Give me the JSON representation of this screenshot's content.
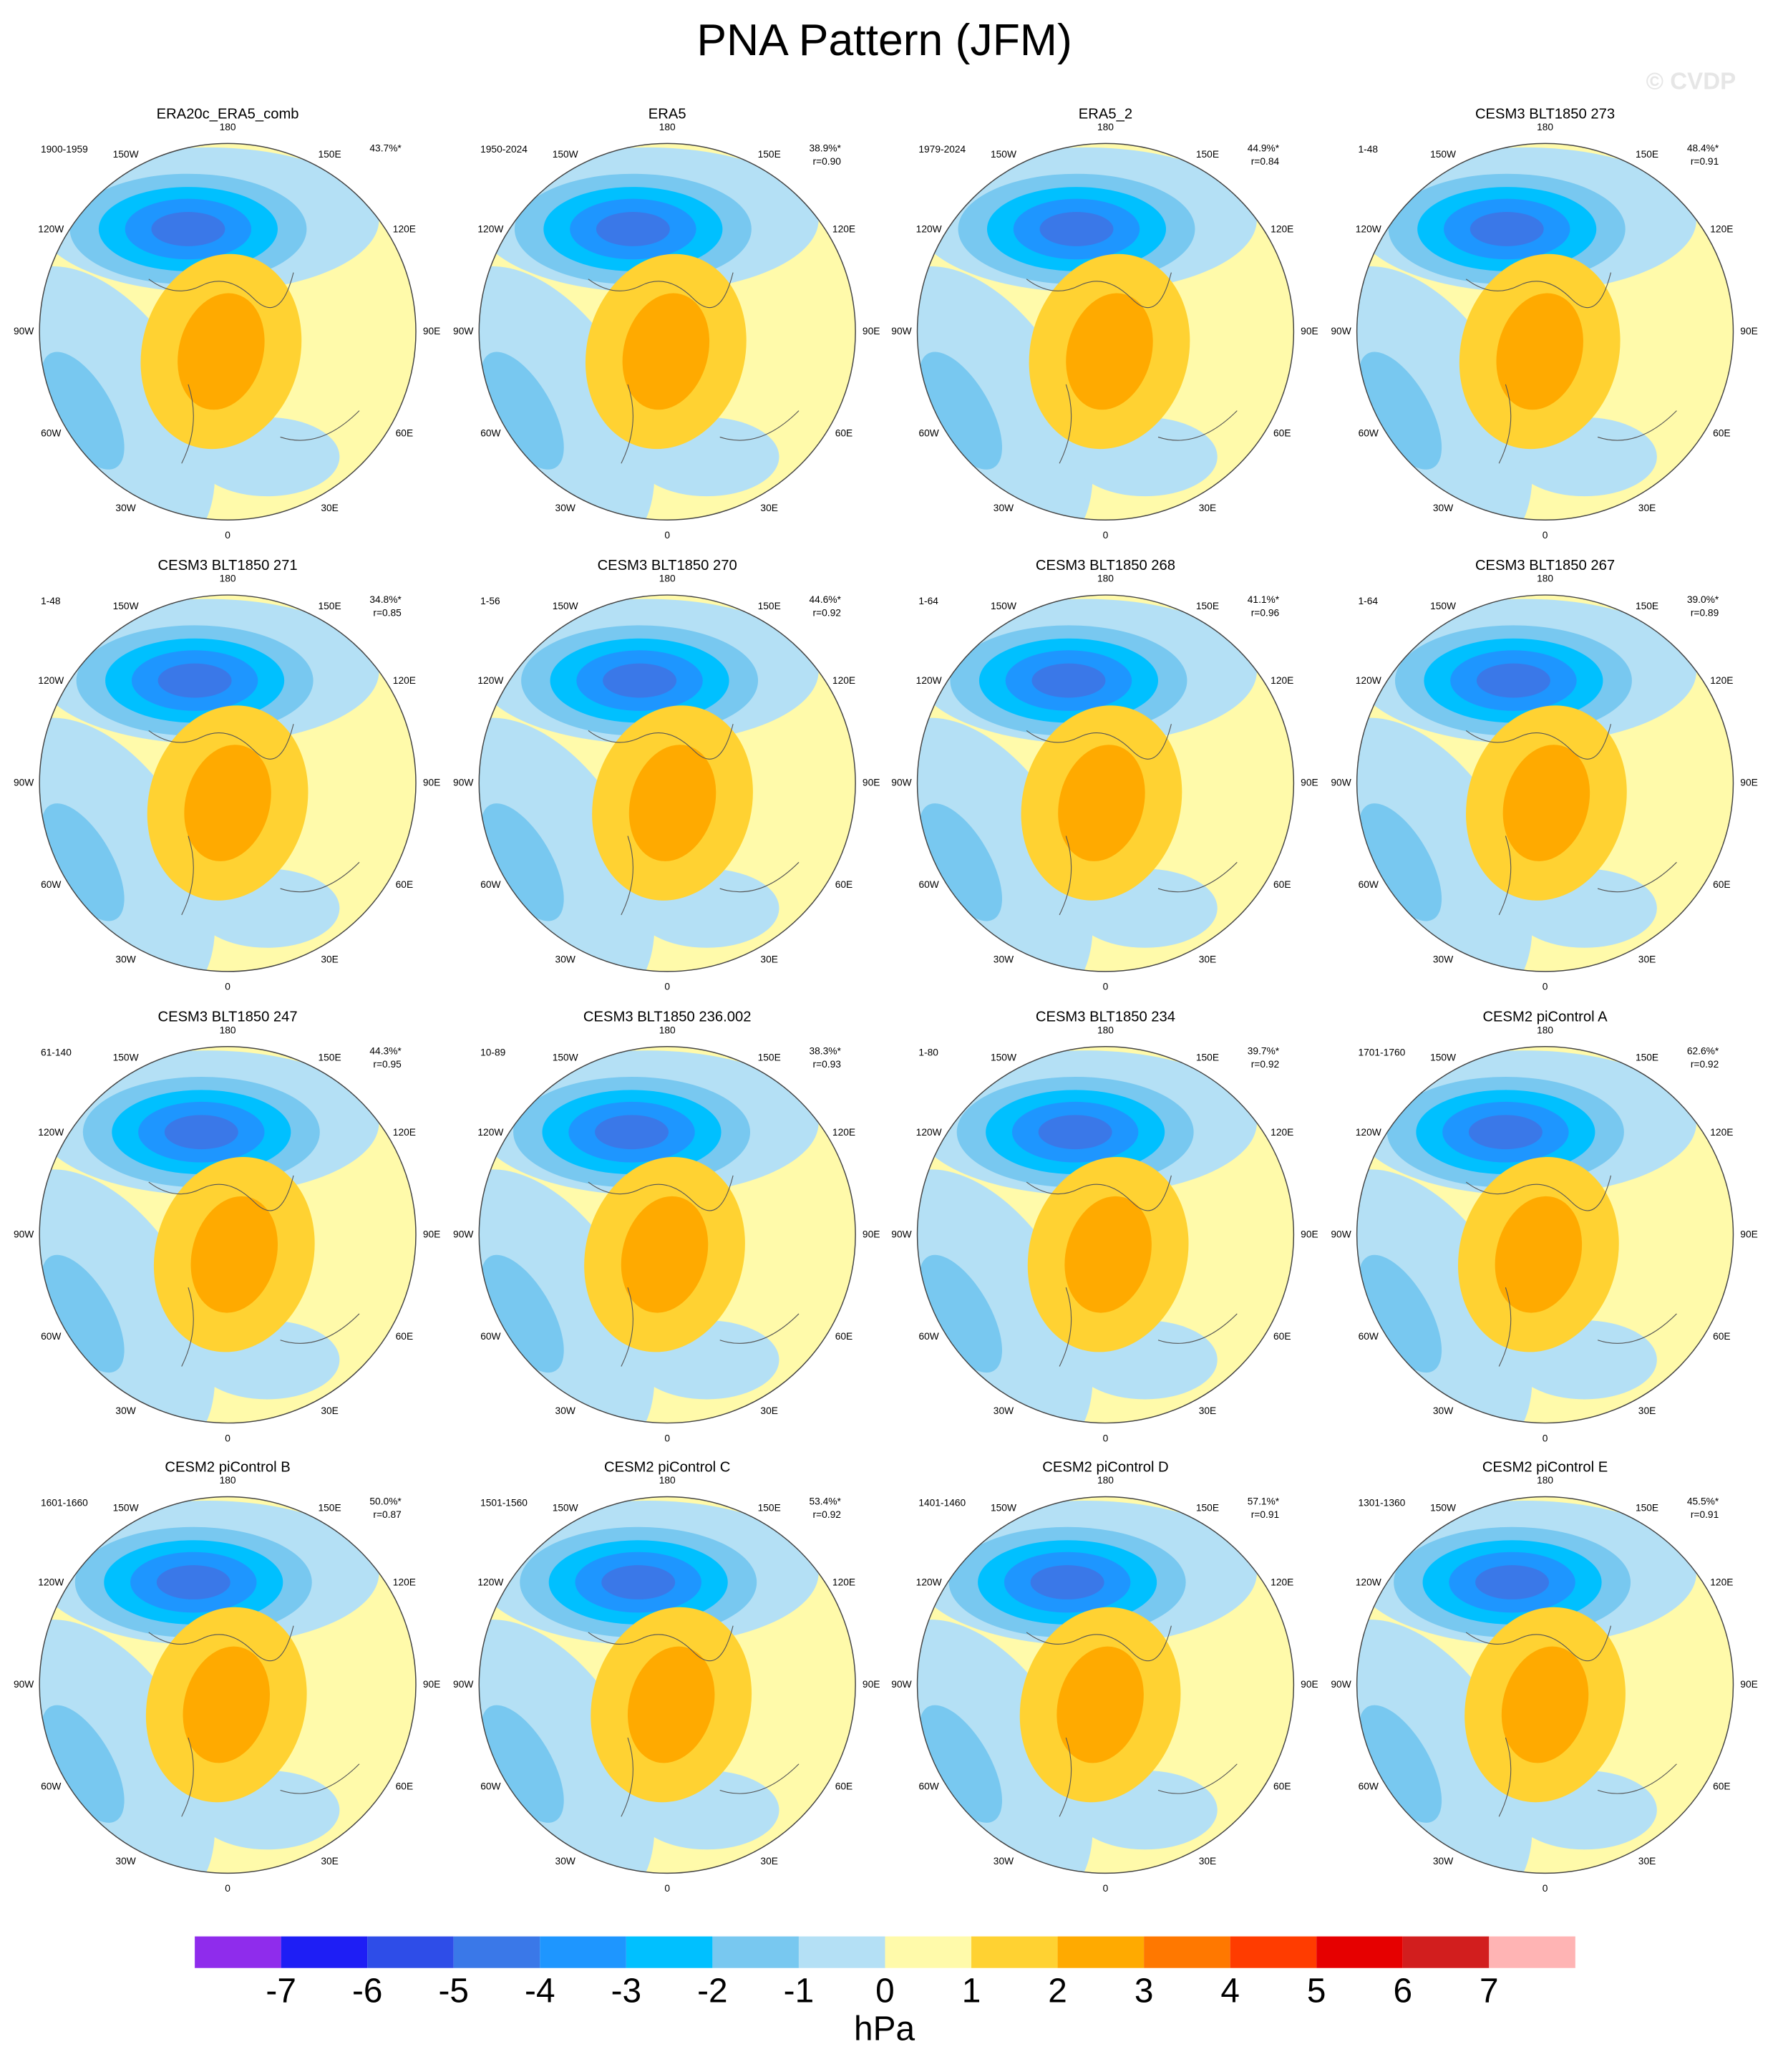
{
  "title": "PNA Pattern (JFM)",
  "watermark": "© CVDP",
  "panels": [
    {
      "title": "ERA20c_ERA5_comb",
      "period": "1900-1959",
      "pct": "43.7%*"
    },
    {
      "title": "ERA5",
      "period": "1950-2024",
      "pct": "38.9%*",
      "r": "r=0.90"
    },
    {
      "title": "ERA5_2",
      "period": "1979-2024",
      "pct": "44.9%*",
      "r": "r=0.84"
    },
    {
      "title": "CESM3 BLT1850 273",
      "period": "1-48",
      "pct": "48.4%*",
      "r": "r=0.91"
    },
    {
      "title": "CESM3 BLT1850 271",
      "period": "1-48",
      "pct": "34.8%*",
      "r": "r=0.85"
    },
    {
      "title": "CESM3 BLT1850 270",
      "period": "1-56",
      "pct": "44.6%*",
      "r": "r=0.92"
    },
    {
      "title": "CESM3 BLT1850 268",
      "period": "1-64",
      "pct": "41.1%*",
      "r": "r=0.96"
    },
    {
      "title": "CESM3 BLT1850 267",
      "period": "1-64",
      "pct": "39.0%*",
      "r": "r=0.89"
    },
    {
      "title": "CESM3 BLT1850 247",
      "period": "61-140",
      "pct": "44.3%*",
      "r": "r=0.95"
    },
    {
      "title": "CESM3 BLT1850 236.002",
      "period": "10-89",
      "pct": "38.3%*",
      "r": "r=0.93"
    },
    {
      "title": "CESM3 BLT1850 234",
      "period": "1-80",
      "pct": "39.7%*",
      "r": "r=0.92"
    },
    {
      "title": "CESM2 piControl A",
      "period": "1701-1760",
      "pct": "62.6%*",
      "r": "r=0.92"
    },
    {
      "title": "CESM2 piControl B",
      "period": "1601-1660",
      "pct": "50.0%*",
      "r": "r=0.87"
    },
    {
      "title": "CESM2 piControl C",
      "period": "1501-1560",
      "pct": "53.4%*",
      "r": "r=0.92"
    },
    {
      "title": "CESM2 piControl D",
      "period": "1401-1460",
      "pct": "57.1%*",
      "r": "r=0.91"
    },
    {
      "title": "CESM2 piControl E",
      "period": "1301-1360",
      "pct": "45.5%*",
      "r": "r=0.91"
    }
  ],
  "lon_labels": [
    "180",
    "150E",
    "120E",
    "90E",
    "60E",
    "30E",
    "0",
    "30W",
    "60W",
    "90W",
    "120W",
    "150W"
  ],
  "colorbar": {
    "levels": [
      -7,
      -6,
      -5,
      -4,
      -3,
      -2,
      -1,
      0,
      1,
      2,
      3,
      4,
      5,
      6,
      7
    ],
    "colors": [
      "#8f2cec",
      "#1e1ef5",
      "#2e4de8",
      "#3a78e8",
      "#1e96ff",
      "#00c0ff",
      "#78c8f0",
      "#b4e0f5",
      "#fffaaa",
      "#ffd232",
      "#ffaa00",
      "#ff7800",
      "#ff3c00",
      "#e60000",
      "#d21e1e",
      "#ffb4b4"
    ],
    "label": "hPa"
  }
}
